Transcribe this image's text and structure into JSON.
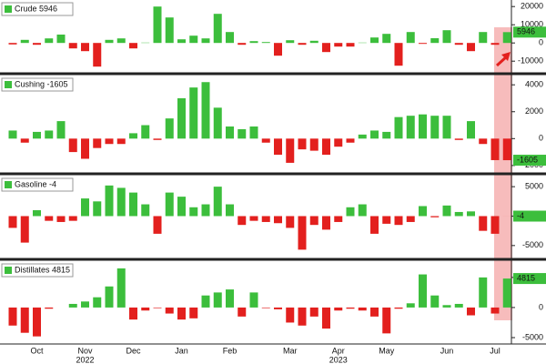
{
  "chart_data": [
    {
      "type": "bar",
      "ylim": [
        -16400,
        23600
      ],
      "yticks": [
        20000,
        10000,
        0,
        -10000
      ],
      "series": [
        {
          "name": "Crude",
          "color": "#3cbe3c",
          "negative_color": "#e3201e",
          "values": [
            -800,
            1700,
            -1000,
            2500,
            4600,
            -3000,
            -4500,
            -13000,
            1700,
            2500,
            -3000,
            200,
            20000,
            14000,
            2000,
            4000,
            2500,
            16000,
            6000,
            -1000,
            1000,
            500,
            -7000,
            1500,
            -1000,
            1200,
            -5000,
            -2000,
            -2000,
            200,
            3000,
            5000,
            -12500,
            6000,
            -500,
            2600,
            7000,
            -1000,
            -4500,
            6000,
            -1000,
            5946
          ]
        }
      ]
    },
    {
      "type": "bar",
      "ylim": [
        -2550,
        4690
      ],
      "yticks": [
        4000,
        2000,
        0,
        -2000
      ],
      "series": [
        {
          "name": "Cushing",
          "color": "#3cbe3c",
          "negative_color": "#e3201e",
          "values": [
            600,
            -300,
            500,
            600,
            1300,
            -1000,
            -1500,
            -700,
            -400,
            -400,
            400,
            1000,
            -100,
            1500,
            3000,
            3800,
            4200,
            2300,
            900,
            700,
            900,
            -300,
            -1200,
            -1800,
            -800,
            -900,
            -1200,
            -600,
            -300,
            300,
            600,
            500,
            1600,
            1700,
            1800,
            1700,
            1700,
            -100,
            1300,
            -400,
            -1600,
            -1605
          ]
        }
      ]
    },
    {
      "type": "bar",
      "ylim": [
        -7190,
        6875
      ],
      "yticks": [
        5000,
        0,
        -5000
      ],
      "series": [
        {
          "name": "Gasoline",
          "color": "#3cbe3c",
          "negative_color": "#e3201e",
          "values": [
            -2000,
            -4500,
            1000,
            -800,
            -1000,
            -800,
            3000,
            2500,
            5200,
            4800,
            4000,
            2000,
            -3000,
            4000,
            3300,
            1500,
            2000,
            5000,
            2000,
            -1500,
            -800,
            -1000,
            -1200,
            -2000,
            -5700,
            -1500,
            -2300,
            -1000,
            1500,
            2000,
            -3000,
            -1300,
            -1500,
            -1000,
            1700,
            -200,
            1800,
            700,
            800,
            -2500,
            -3000,
            -4
          ]
        }
      ]
    },
    {
      "type": "bar",
      "ylim": [
        -6060,
        7700
      ],
      "yticks": [
        5000,
        0,
        -5000
      ],
      "series": [
        {
          "name": "Distillates",
          "color": "#3cbe3c",
          "negative_color": "#e3201e",
          "values": [
            -3000,
            -4200,
            -4800,
            -200,
            0,
            600,
            1000,
            1700,
            3500,
            6500,
            -2000,
            -500,
            -100,
            -1000,
            -2000,
            -1800,
            2000,
            2500,
            3000,
            -1500,
            2500,
            -100,
            -300,
            -2500,
            -3000,
            -1500,
            -3500,
            -500,
            -200,
            -500,
            -1500,
            -4300,
            -200,
            700,
            5500,
            2000,
            400,
            600,
            -1300,
            5000,
            -1000,
            4815
          ]
        }
      ],
      "categories": [
        null,
        null,
        "Oct",
        null,
        null,
        null,
        "Nov",
        null,
        null,
        null,
        "Dec",
        null,
        null,
        null,
        "Jan",
        null,
        null,
        null,
        "Feb",
        null,
        null,
        null,
        null,
        "Mar",
        null,
        null,
        null,
        "Apr",
        null,
        null,
        null,
        "May",
        null,
        null,
        null,
        null,
        "Jun",
        null,
        null,
        null,
        "Jul",
        null
      ],
      "years": [
        null,
        null,
        null,
        null,
        null,
        null,
        "2022",
        null,
        null,
        null,
        null,
        null,
        null,
        null,
        null,
        null,
        null,
        null,
        null,
        null,
        null,
        null,
        null,
        null,
        null,
        null,
        null,
        "2023",
        null,
        null,
        null,
        null,
        null,
        null,
        null,
        null,
        null,
        null,
        null,
        null,
        null,
        null
      ]
    }
  ]
}
